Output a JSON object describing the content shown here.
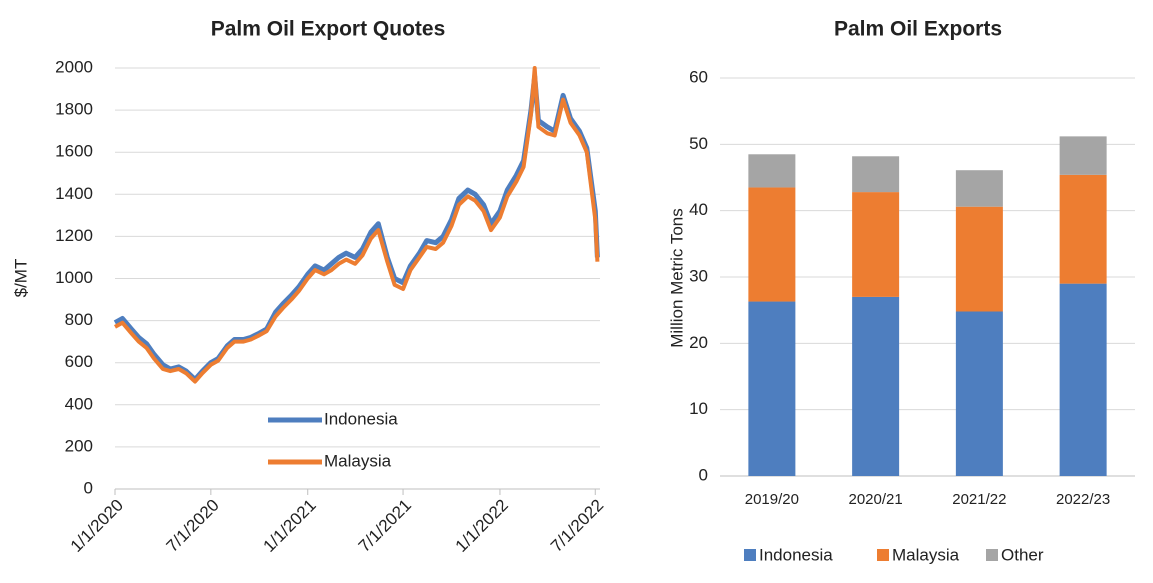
{
  "chart_data": [
    {
      "type": "line",
      "title": "Palm Oil Export Quotes",
      "y_label": "$/MT",
      "x": [
        "2020-01-01",
        "2020-01-15",
        "2020-02-01",
        "2020-02-15",
        "2020-03-01",
        "2020-03-15",
        "2020-04-01",
        "2020-04-15",
        "2020-05-01",
        "2020-05-15",
        "2020-06-01",
        "2020-06-15",
        "2020-07-01",
        "2020-07-15",
        "2020-08-01",
        "2020-08-15",
        "2020-09-01",
        "2020-09-15",
        "2020-10-01",
        "2020-10-15",
        "2020-11-01",
        "2020-11-15",
        "2020-12-01",
        "2020-12-15",
        "2021-01-01",
        "2021-01-15",
        "2021-02-01",
        "2021-02-15",
        "2021-03-01",
        "2021-03-15",
        "2021-04-01",
        "2021-04-15",
        "2021-05-01",
        "2021-05-15",
        "2021-06-01",
        "2021-06-15",
        "2021-07-01",
        "2021-07-15",
        "2021-08-01",
        "2021-08-15",
        "2021-09-01",
        "2021-09-15",
        "2021-10-01",
        "2021-10-15",
        "2021-11-01",
        "2021-11-15",
        "2021-12-01",
        "2021-12-15",
        "2022-01-01",
        "2022-01-15",
        "2022-02-01",
        "2022-02-15",
        "2022-03-01",
        "2022-03-08",
        "2022-03-15",
        "2022-04-01",
        "2022-04-15",
        "2022-05-01",
        "2022-05-15",
        "2022-06-01",
        "2022-06-15",
        "2022-07-01",
        "2022-07-05"
      ],
      "series": [
        {
          "name": "Indonesia",
          "color": "#4e7ebf",
          "values": [
            790,
            810,
            760,
            720,
            690,
            640,
            590,
            570,
            580,
            560,
            520,
            560,
            600,
            620,
            680,
            710,
            710,
            720,
            740,
            760,
            840,
            880,
            920,
            960,
            1020,
            1060,
            1040,
            1070,
            1100,
            1120,
            1100,
            1140,
            1220,
            1260,
            1100,
            1000,
            980,
            1060,
            1120,
            1180,
            1170,
            1200,
            1280,
            1380,
            1420,
            1400,
            1350,
            1260,
            1320,
            1420,
            1490,
            1560,
            1800,
            1960,
            1750,
            1720,
            1700,
            1870,
            1760,
            1700,
            1620,
            1320,
            1100
          ]
        },
        {
          "name": "Malaysia",
          "color": "#ed7d31",
          "values": [
            770,
            790,
            740,
            700,
            670,
            620,
            570,
            560,
            570,
            550,
            510,
            550,
            590,
            610,
            670,
            700,
            700,
            710,
            730,
            750,
            820,
            860,
            900,
            940,
            1000,
            1040,
            1020,
            1040,
            1070,
            1090,
            1070,
            1110,
            1190,
            1230,
            1080,
            970,
            950,
            1040,
            1100,
            1150,
            1140,
            1170,
            1250,
            1350,
            1390,
            1370,
            1320,
            1230,
            1290,
            1390,
            1460,
            1530,
            1780,
            2000,
            1720,
            1690,
            1680,
            1850,
            1740,
            1680,
            1600,
            1280,
            1080
          ]
        }
      ],
      "xlim": [
        "2020-01-01",
        "2022-07-10"
      ],
      "xticks": [
        {
          "value": "2020-01-01",
          "label": "1/1/2020"
        },
        {
          "value": "2020-07-01",
          "label": "7/1/2020"
        },
        {
          "value": "2021-01-01",
          "label": "1/1/2021"
        },
        {
          "value": "2021-07-01",
          "label": "7/1/2021"
        },
        {
          "value": "2022-01-01",
          "label": "1/1/2022"
        },
        {
          "value": "2022-07-01",
          "label": "7/1/2022"
        }
      ],
      "ylim": [
        0,
        2000
      ],
      "yticks": [
        0,
        200,
        400,
        600,
        800,
        1000,
        1200,
        1400,
        1600,
        1800,
        2000
      ],
      "grid": true,
      "legend": "lower center"
    },
    {
      "type": "stacked_bar",
      "title": "Palm Oil Exports",
      "y_label": "Million Metric Tons",
      "categories": [
        "2019/20",
        "2020/21",
        "2021/22",
        "2022/23"
      ],
      "series": [
        {
          "name": "Indonesia",
          "color": "#4e7ebf",
          "values": [
            26.3,
            27.0,
            24.8,
            29.0
          ]
        },
        {
          "name": "Malaysia",
          "color": "#ed7d31",
          "values": [
            17.2,
            15.8,
            15.8,
            16.4
          ]
        },
        {
          "name": "Other",
          "color": "#a5a5a5",
          "values": [
            5.0,
            5.4,
            5.5,
            5.8
          ]
        }
      ],
      "ylim": [
        0,
        60
      ],
      "yticks": [
        0,
        10,
        20,
        30,
        40,
        50,
        60
      ],
      "grid": true,
      "legend": "bottom"
    }
  ]
}
